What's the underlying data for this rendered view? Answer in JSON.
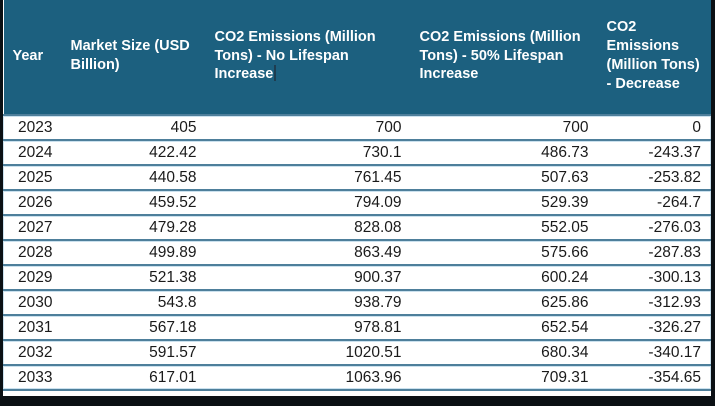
{
  "chart_data": {
    "type": "table",
    "title": "",
    "columns": [
      "Year",
      "Market Size (USD Billion)",
      "CO2 Emissions (Million Tons) - No Lifespan Increase",
      "CO2 Emissions (Million Tons) - 50% Lifespan Increase",
      "CO2 Emissions (Million Tons) - Decrease"
    ],
    "rows": [
      [
        "2023",
        "405",
        "700",
        "700",
        "0"
      ],
      [
        "2024",
        "422.42",
        "730.1",
        "486.73",
        "-243.37"
      ],
      [
        "2025",
        "440.58",
        "761.45",
        "507.63",
        "-253.82"
      ],
      [
        "2026",
        "459.52",
        "794.09",
        "529.39",
        "-264.7"
      ],
      [
        "2027",
        "479.28",
        "828.08",
        "552.05",
        "-276.03"
      ],
      [
        "2028",
        "499.89",
        "863.49",
        "575.66",
        "-287.83"
      ],
      [
        "2029",
        "521.38",
        "900.37",
        "600.24",
        "-300.13"
      ],
      [
        "2030",
        "543.8",
        "938.79",
        "625.86",
        "-312.93"
      ],
      [
        "2031",
        "567.18",
        "978.81",
        "652.54",
        "-326.27"
      ],
      [
        "2032",
        "591.57",
        "1020.51",
        "680.34",
        "-340.17"
      ],
      [
        "2033",
        "617.01",
        "1063.96",
        "709.31",
        "-354.65"
      ]
    ]
  },
  "editor_state": {
    "text_caret_visible": true,
    "text_caret_position": "after header text 'Increase' in column 3"
  },
  "colors": {
    "header_background": "#1C607F",
    "header_text": "#FFFFFF",
    "row_background": "#FFFFFF",
    "row_text": "#1A1A1A",
    "separator_dark": "#4E7F9B",
    "separator_light": "#CBE1EE",
    "outer_border": "#0B1014",
    "caret": "#1E3D50"
  }
}
